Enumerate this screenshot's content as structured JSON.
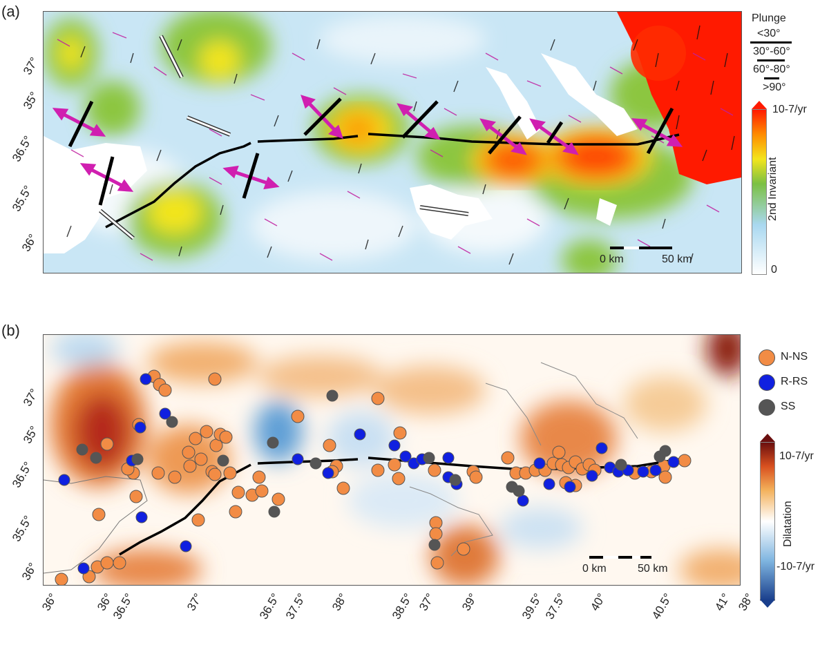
{
  "panels": {
    "a": {
      "label": "(a)"
    },
    "b": {
      "label": "(b)"
    }
  },
  "lat_ticks_a": [
    "37°",
    "35°",
    "36.5°",
    "35.5°",
    "36°"
  ],
  "lat_ticks_b": [
    "37°",
    "35°",
    "36.5°",
    "35.5°",
    "36°"
  ],
  "lon_ticks": [
    "36°",
    "36°",
    "36.5°",
    "37°",
    "36.5°",
    "37.5°",
    "38°",
    "38.5°",
    "37°",
    "39°",
    "39.5°",
    "37.5°",
    "40°",
    "40.5°",
    "41°",
    "38°"
  ],
  "plunge_legend": {
    "title": "Plunge",
    "items": [
      "<30°",
      "30°-60°",
      "60°-80°",
      ">90°"
    ]
  },
  "colorbar_a": {
    "top": "10-7/yr",
    "title": "2nd Invariant",
    "bottom": "0",
    "colors": [
      "#ffffff",
      "#a9d8f0",
      "#7bc043",
      "#f3e51c",
      "#ff8c00",
      "#ff1a00"
    ]
  },
  "colorbar_b": {
    "top": "10-7/yr",
    "title": "Dilatation",
    "bottom": "-10-7/yr",
    "colors": [
      "#1a3f8c",
      "#7fb5e0",
      "#ffffff",
      "#f3b05a",
      "#d8501f",
      "#6b0f0f"
    ]
  },
  "scale_bar_a": {
    "left": "0 km",
    "right": "50 km"
  },
  "scale_bar_b": {
    "left": "0 km",
    "right": "50 km"
  },
  "event_legend": {
    "items": [
      {
        "label": "N-NS",
        "color": "#f28c45"
      },
      {
        "label": "R-RS",
        "color": "#1020e0"
      },
      {
        "label": "SS",
        "color": "#555555"
      }
    ]
  },
  "colors": {
    "fault": "#000000",
    "compression_arrow": "#000000",
    "extension_arrow": "#d01fb0",
    "white_arrow": "#ffffff"
  }
}
